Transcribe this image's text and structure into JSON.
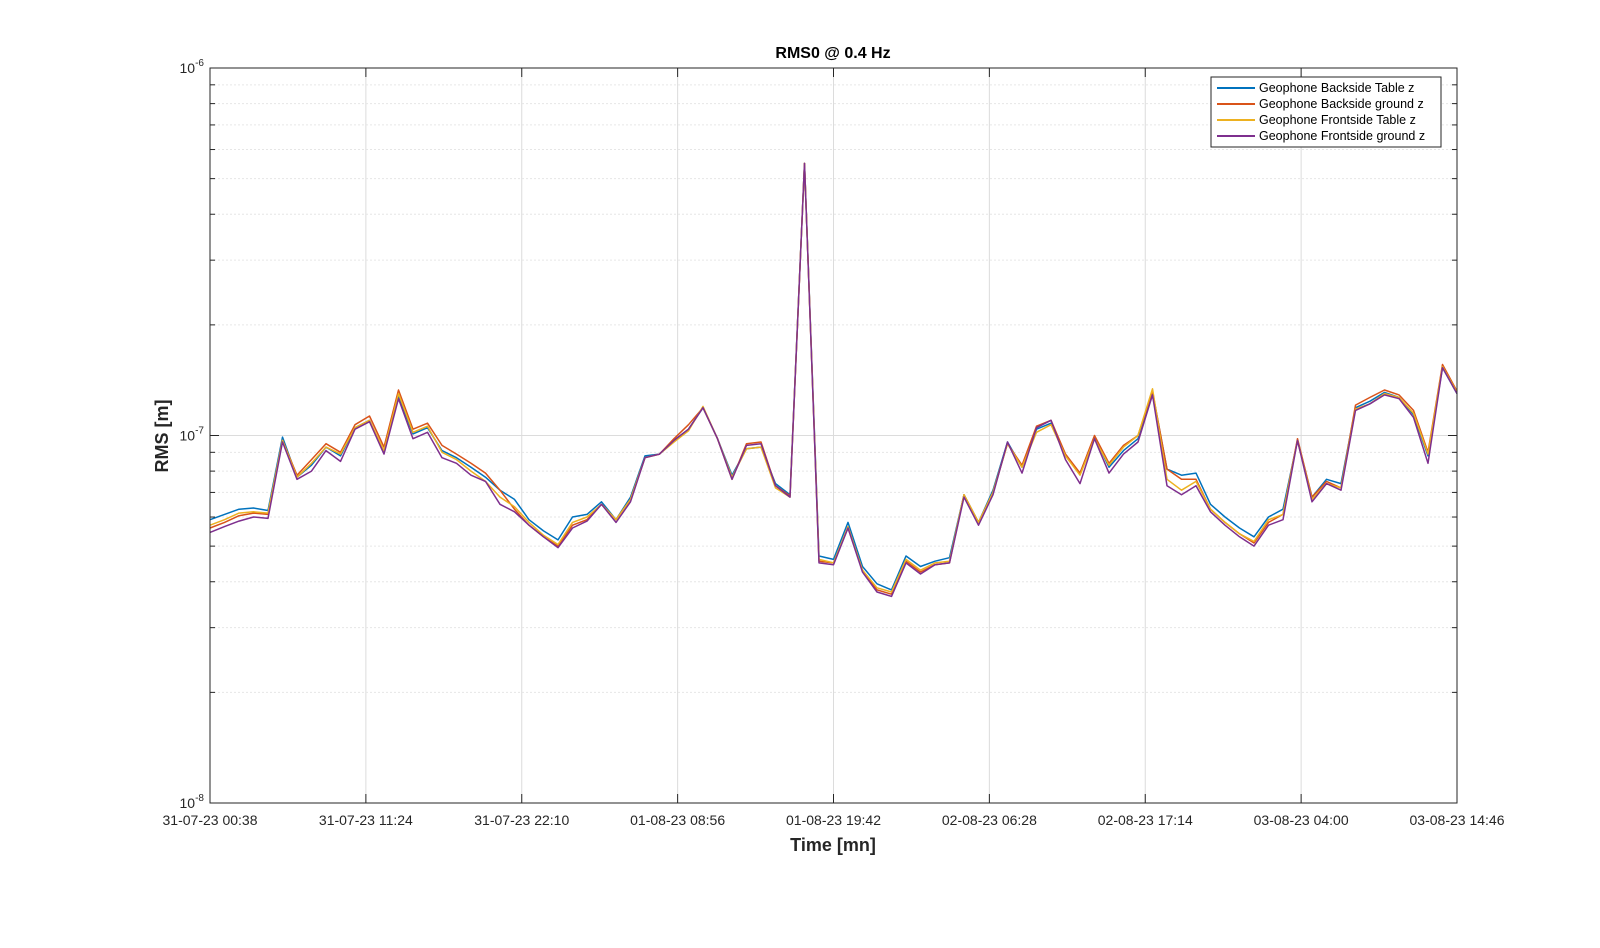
{
  "chart_data": {
    "type": "line",
    "title": "RMS0 @ 0.4 Hz",
    "xlabel": "Time [mn]",
    "ylabel": "RMS [m]",
    "yscale": "log",
    "ylim": [
      1e-08,
      1e-06
    ],
    "xlim": [
      0,
      80
    ],
    "x_tick_labels": [
      "31-07-23 00:38",
      "31-07-23 11:24",
      "31-07-23 22:10",
      "01-08-23 08:56",
      "01-08-23 19:42",
      "02-08-23 06:28",
      "02-08-23 17:14",
      "03-08-23 04:00",
      "03-08-23 14:46"
    ],
    "y_tick_labels": [
      {
        "base": "10",
        "exp": "-8"
      },
      {
        "base": "10",
        "exp": "-7"
      },
      {
        "base": "10",
        "exp": "-6"
      }
    ],
    "grid": true,
    "legend_position": "top-right",
    "series": [
      {
        "name": "Geophone Backside Table z",
        "color": "#0072BD",
        "values": [
          5.9e-08,
          6.1e-08,
          6.3e-08,
          6.35e-08,
          6.25e-08,
          9.9e-08,
          7.7e-08,
          8.3e-08,
          9.3e-08,
          8.8e-08,
          1.05e-07,
          1.1e-07,
          9e-08,
          1.28e-07,
          1.01e-07,
          1.05e-07,
          9.1e-08,
          8.7e-08,
          8.2e-08,
          7.7e-08,
          7.1e-08,
          6.7e-08,
          5.9e-08,
          5.5e-08,
          5.2e-08,
          6e-08,
          6.1e-08,
          6.6e-08,
          5.9e-08,
          6.8e-08,
          8.8e-08,
          8.9e-08,
          9.7e-08,
          1.04e-07,
          1.19e-07,
          9.8e-08,
          7.8e-08,
          9.2e-08,
          9.3e-08,
          7.4e-08,
          6.9e-08,
          5.5e-07,
          4.7e-08,
          4.6e-08,
          5.8e-08,
          4.4e-08,
          3.95e-08,
          3.8e-08,
          4.7e-08,
          4.4e-08,
          4.55e-08,
          4.65e-08,
          6.9e-08,
          5.8e-08,
          7.1e-08,
          9.6e-08,
          8.2e-08,
          1.04e-07,
          1.08e-07,
          8.8e-08,
          7.9e-08,
          9.9e-08,
          8.2e-08,
          9.1e-08,
          9.8e-08,
          1.31e-07,
          8.1e-08,
          7.8e-08,
          7.9e-08,
          6.5e-08,
          6e-08,
          5.6e-08,
          5.3e-08,
          6e-08,
          6.3e-08,
          9.7e-08,
          6.8e-08,
          7.6e-08,
          7.4e-08,
          1.19e-07,
          1.24e-07,
          1.31e-07,
          1.27e-07,
          1.14e-07,
          8.8e-08,
          1.53e-07,
          1.3e-07
        ]
      },
      {
        "name": "Geophone Backside ground z",
        "color": "#D95319",
        "values": [
          5.6e-08,
          5.8e-08,
          6.05e-08,
          6.15e-08,
          6.1e-08,
          9.7e-08,
          7.8e-08,
          8.6e-08,
          9.5e-08,
          9e-08,
          1.07e-07,
          1.13e-07,
          9.3e-08,
          1.33e-07,
          1.04e-07,
          1.08e-07,
          9.4e-08,
          8.9e-08,
          8.4e-08,
          7.9e-08,
          7.1e-08,
          6.3e-08,
          5.7e-08,
          5.3e-08,
          5e-08,
          5.7e-08,
          5.9e-08,
          6.5e-08,
          5.9e-08,
          6.7e-08,
          8.7e-08,
          8.9e-08,
          9.8e-08,
          1.07e-07,
          1.19e-07,
          9.8e-08,
          7.6e-08,
          9.5e-08,
          9.6e-08,
          7.3e-08,
          6.85e-08,
          5.5e-07,
          4.55e-08,
          4.5e-08,
          5.6e-08,
          4.3e-08,
          3.8e-08,
          3.7e-08,
          4.55e-08,
          4.25e-08,
          4.45e-08,
          4.5e-08,
          6.9e-08,
          5.8e-08,
          7e-08,
          9.5e-08,
          8.3e-08,
          1.06e-07,
          1.1e-07,
          8.9e-08,
          7.9e-08,
          1e-07,
          8.4e-08,
          9.4e-08,
          1e-07,
          1.32e-07,
          8.1e-08,
          7.6e-08,
          7.6e-08,
          6.3e-08,
          5.8e-08,
          5.4e-08,
          5.1e-08,
          5.8e-08,
          6.1e-08,
          9.8e-08,
          6.8e-08,
          7.5e-08,
          7.2e-08,
          1.21e-07,
          1.27e-07,
          1.33e-07,
          1.29e-07,
          1.17e-07,
          9e-08,
          1.56e-07,
          1.32e-07
        ]
      },
      {
        "name": "Geophone Frontside Table z",
        "color": "#EDB120",
        "values": [
          5.7e-08,
          5.9e-08,
          6.15e-08,
          6.2e-08,
          6.15e-08,
          9.7e-08,
          7.7e-08,
          8.4e-08,
          9.3e-08,
          8.9e-08,
          1.05e-07,
          1.1e-07,
          9.1e-08,
          1.3e-07,
          1.02e-07,
          1.06e-07,
          9e-08,
          8.6e-08,
          8e-08,
          7.5e-08,
          6.8e-08,
          6.4e-08,
          5.8e-08,
          5.35e-08,
          5.05e-08,
          5.8e-08,
          6e-08,
          6.5e-08,
          5.9e-08,
          6.7e-08,
          8.7e-08,
          8.9e-08,
          9.6e-08,
          1.03e-07,
          1.2e-07,
          9.8e-08,
          7.7e-08,
          9.2e-08,
          9.3e-08,
          7.2e-08,
          6.8e-08,
          5.5e-07,
          4.6e-08,
          4.5e-08,
          5.65e-08,
          4.3e-08,
          3.85e-08,
          3.75e-08,
          4.6e-08,
          4.3e-08,
          4.5e-08,
          4.55e-08,
          6.9e-08,
          5.8e-08,
          7e-08,
          9.5e-08,
          8.2e-08,
          1.02e-07,
          1.07e-07,
          8.8e-08,
          7.8e-08,
          9.8e-08,
          8.3e-08,
          9.3e-08,
          1e-07,
          1.34e-07,
          7.6e-08,
          7.1e-08,
          7.5e-08,
          6.3e-08,
          5.8e-08,
          5.4e-08,
          5.15e-08,
          5.9e-08,
          6.1e-08,
          9.7e-08,
          6.7e-08,
          7.4e-08,
          7.2e-08,
          1.18e-07,
          1.22e-07,
          1.3e-07,
          1.27e-07,
          1.15e-07,
          8.9e-08,
          1.54e-07,
          1.31e-07
        ]
      },
      {
        "name": "Geophone Frontside ground z",
        "color": "#7E2F8E",
        "values": [
          5.45e-08,
          5.65e-08,
          5.85e-08,
          6e-08,
          5.95e-08,
          9.6e-08,
          7.6e-08,
          8e-08,
          9.1e-08,
          8.5e-08,
          1.04e-07,
          1.09e-07,
          8.9e-08,
          1.26e-07,
          9.8e-08,
          1.02e-07,
          8.7e-08,
          8.4e-08,
          7.8e-08,
          7.5e-08,
          6.5e-08,
          6.2e-08,
          5.7e-08,
          5.3e-08,
          4.95e-08,
          5.6e-08,
          5.85e-08,
          6.5e-08,
          5.8e-08,
          6.6e-08,
          8.7e-08,
          8.9e-08,
          9.7e-08,
          1.04e-07,
          1.19e-07,
          9.8e-08,
          7.6e-08,
          9.4e-08,
          9.5e-08,
          7.3e-08,
          6.8e-08,
          5.5e-07,
          4.5e-08,
          4.45e-08,
          5.6e-08,
          4.25e-08,
          3.75e-08,
          3.65e-08,
          4.5e-08,
          4.2e-08,
          4.45e-08,
          4.5e-08,
          6.8e-08,
          5.7e-08,
          6.9e-08,
          9.6e-08,
          7.9e-08,
          1.05e-07,
          1.1e-07,
          8.6e-08,
          7.4e-08,
          9.8e-08,
          7.9e-08,
          8.9e-08,
          9.6e-08,
          1.29e-07,
          7.3e-08,
          6.9e-08,
          7.3e-08,
          6.2e-08,
          5.7e-08,
          5.3e-08,
          5e-08,
          5.7e-08,
          5.9e-08,
          9.7e-08,
          6.6e-08,
          7.4e-08,
          7.1e-08,
          1.17e-07,
          1.22e-07,
          1.29e-07,
          1.26e-07,
          1.12e-07,
          8.4e-08,
          1.53e-07,
          1.3e-07
        ]
      }
    ]
  }
}
